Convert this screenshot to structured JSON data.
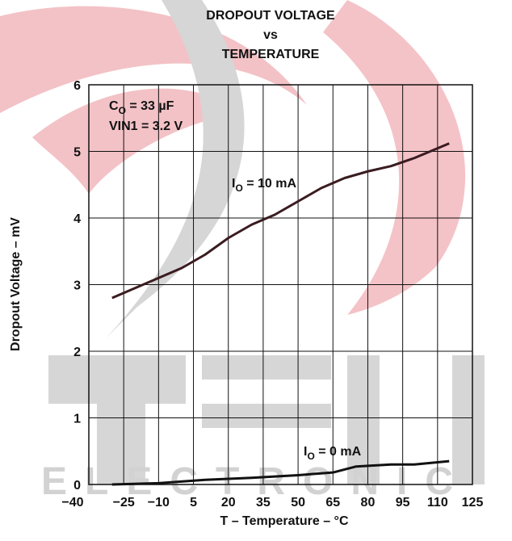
{
  "chart_data": {
    "type": "line",
    "title": [
      "DROPOUT VOLTAGE",
      "vs",
      "TEMPERATURE"
    ],
    "x_label": "T – Temperature – °C",
    "y_label": "Dropout Voltage – mV",
    "annotations": [
      {
        "main": "C",
        "sub": "O",
        "rest": " = 33 µF"
      },
      {
        "main": "VIN1 = 3.2 V"
      }
    ],
    "watermark": "ELECTRONIC",
    "xlim": [
      -40,
      125
    ],
    "xticks": [
      {
        "value": -40,
        "label": "−40"
      },
      {
        "value": -25,
        "label": "−25"
      },
      {
        "value": -10,
        "label": "−10"
      },
      5,
      20,
      35,
      50,
      65,
      80,
      95,
      110,
      125
    ],
    "ylim": [
      0,
      6
    ],
    "yticks": [
      0,
      1,
      2,
      3,
      4,
      5,
      6
    ],
    "grid": true,
    "series": [
      {
        "label": {
          "main": "I",
          "sub": "O",
          "rest": " = 10 mA"
        },
        "color": "#3a1c20",
        "x": [
          -30,
          -20,
          -10,
          0,
          10,
          20,
          30,
          40,
          50,
          60,
          70,
          80,
          90,
          100,
          115
        ],
        "values": [
          2.8,
          2.95,
          3.1,
          3.25,
          3.45,
          3.7,
          3.9,
          4.05,
          4.25,
          4.45,
          4.6,
          4.7,
          4.78,
          4.9,
          5.12
        ]
      },
      {
        "label": {
          "main": "I",
          "sub": "O",
          "rest": " = 0 mA"
        },
        "color": "#111111",
        "x": [
          -30,
          -10,
          10,
          30,
          50,
          65,
          75,
          90,
          100,
          115
        ],
        "values": [
          0,
          0.02,
          0.07,
          0.1,
          0.14,
          0.18,
          0.27,
          0.3,
          0.3,
          0.35
        ]
      }
    ]
  }
}
